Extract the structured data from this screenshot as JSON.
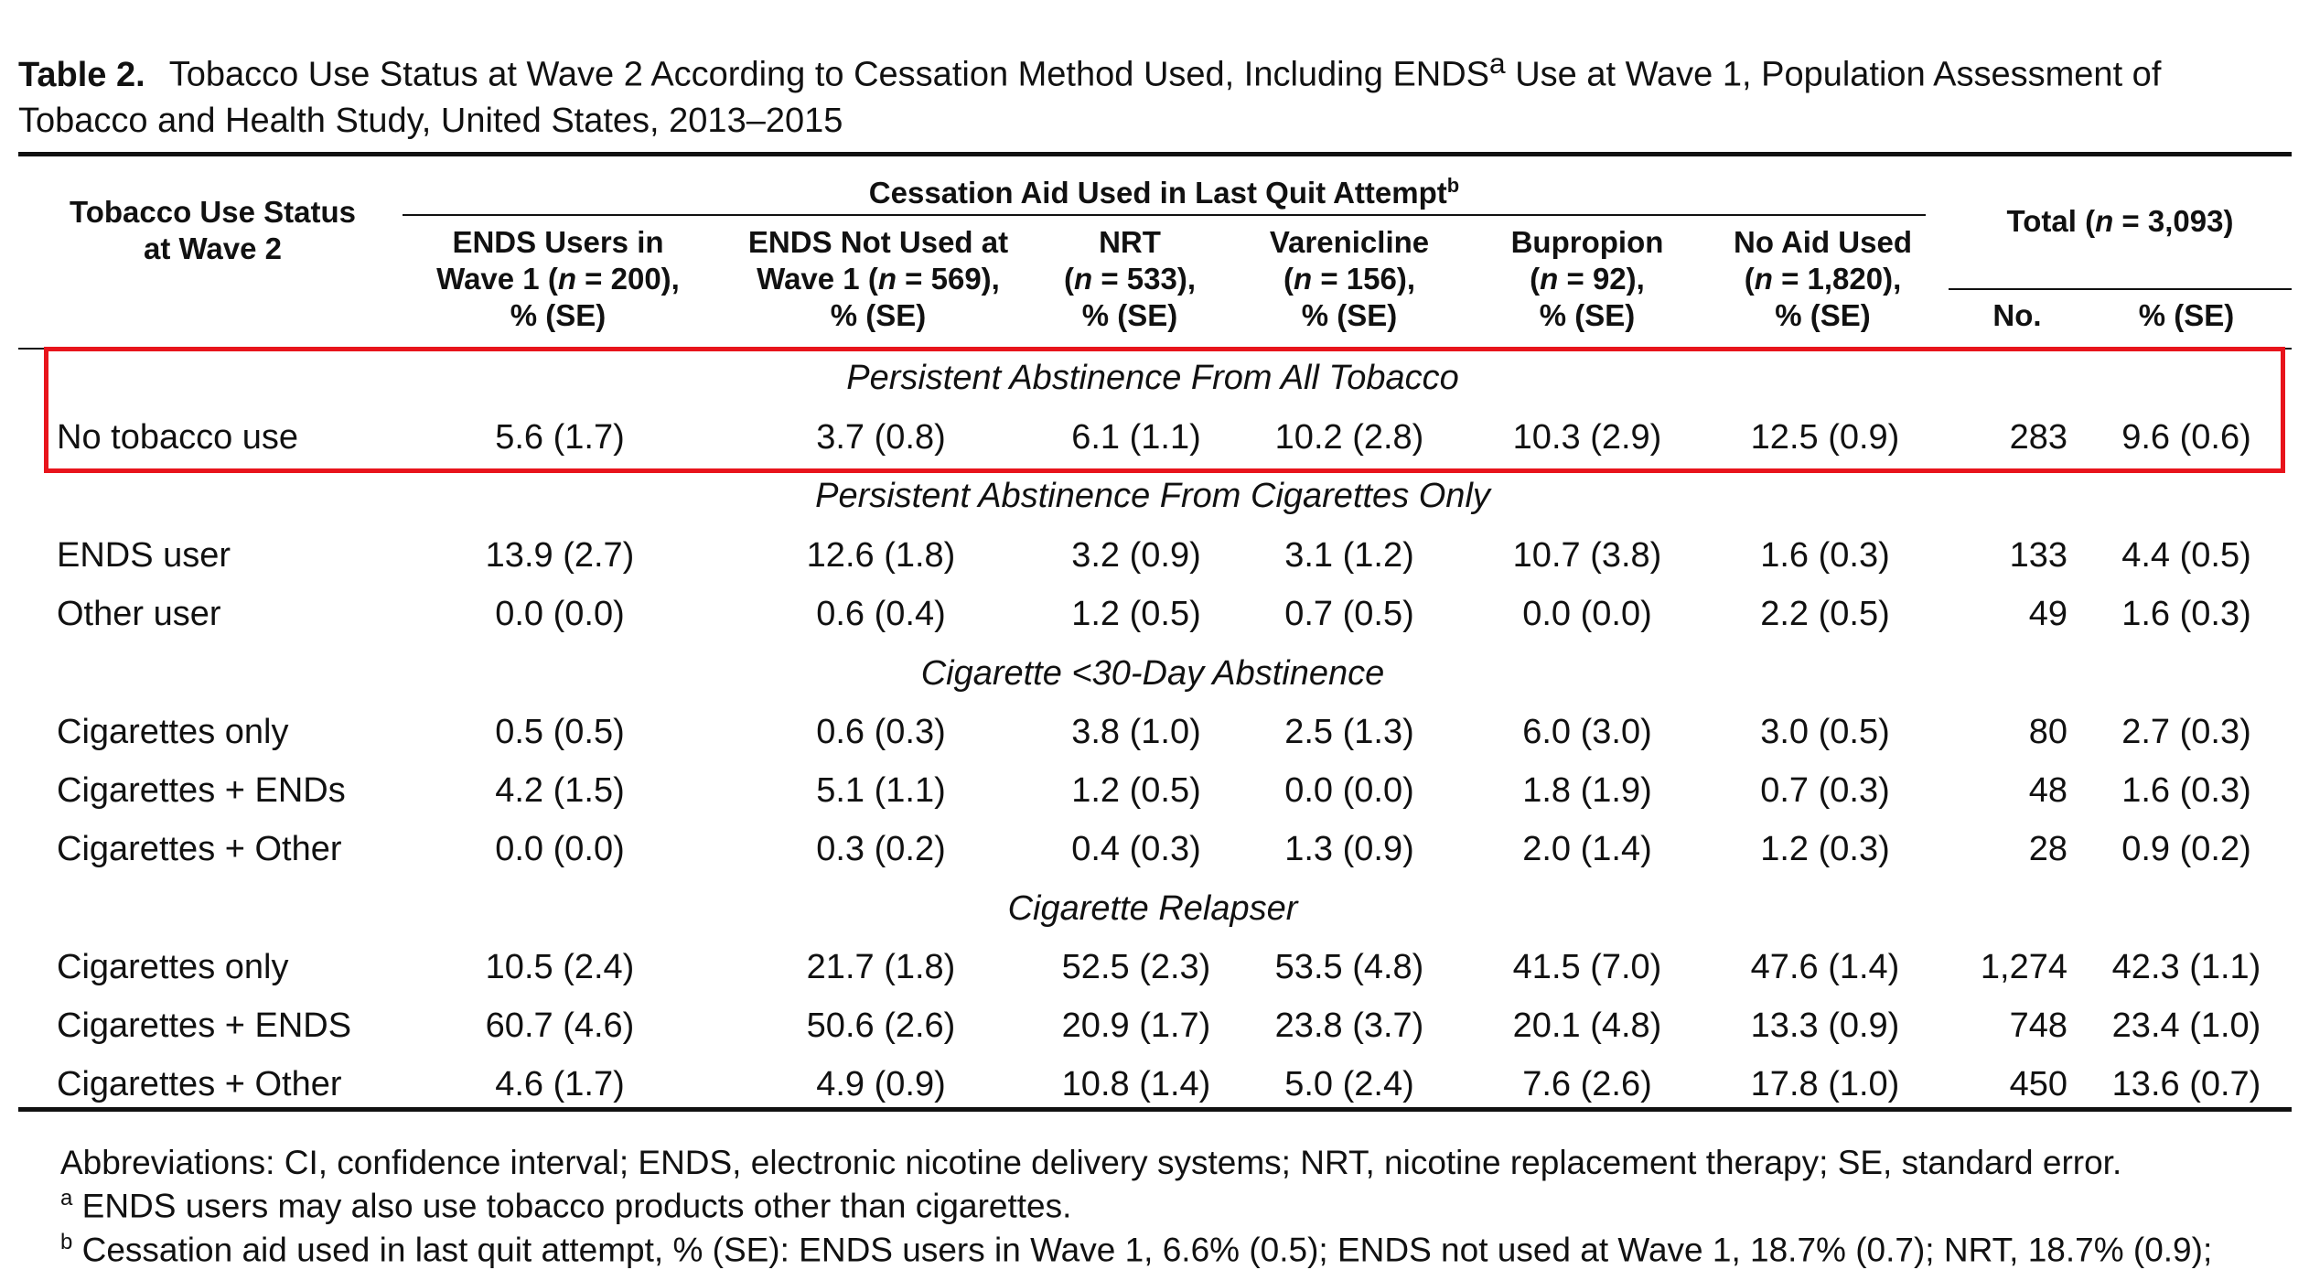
{
  "caption": {
    "label": "Table 2.",
    "text_before": "Tobacco Use Status at Wave 2 According to Cessation Method Used, Including ENDS",
    "sup": "a",
    "text_after": " Use at Wave 1, Population Assessment of Tobacco and Health Study, United States, 2013–2015"
  },
  "header": {
    "status_line1": "Tobacco Use Status",
    "status_line2": "at Wave 2",
    "group_title": "Cessation Aid Used in Last Quit Attempt",
    "group_sup": "b",
    "columns": [
      {
        "l1": "ENDS Users in",
        "l2a": "Wave 1 (",
        "n": "n",
        "l2b": " = 200),",
        "l3": "% (SE)"
      },
      {
        "l1": "ENDS Not Used at",
        "l2a": "Wave 1 (",
        "n": "n",
        "l2b": " = 569),",
        "l3": "% (SE)"
      },
      {
        "l1": "NRT",
        "l2a": "(",
        "n": "n",
        "l2b": " = 533),",
        "l3": "% (SE)"
      },
      {
        "l1": "Varenicline",
        "l2a": "(",
        "n": "n",
        "l2b": " = 156),",
        "l3": "% (SE)"
      },
      {
        "l1": "Bupropion",
        "l2a": "(",
        "n": "n",
        "l2b": " = 92),",
        "l3": "% (SE)"
      },
      {
        "l1": "No Aid Used",
        "l2a": "(",
        "n": "n",
        "l2b": " = 1,820),",
        "l3": "% (SE)"
      }
    ],
    "total_a": "Total (",
    "total_n": "n",
    "total_b": " = 3,093)",
    "total_no": "No.",
    "total_pct": "% (SE)"
  },
  "sections": [
    {
      "title": "Persistent Abstinence From All Tobacco",
      "rows": [
        {
          "label": "No tobacco use",
          "values": [
            "5.6 (1.7)",
            "3.7 (0.8)",
            "6.1 (1.1)",
            "10.2 (2.8)",
            "10.3 (2.9)",
            "12.5 (0.9)"
          ],
          "no": "283",
          "pct": "9.6 (0.6)"
        }
      ]
    },
    {
      "title": "Persistent Abstinence From Cigarettes Only",
      "rows": [
        {
          "label": "ENDS user",
          "values": [
            "13.9 (2.7)",
            "12.6 (1.8)",
            "3.2 (0.9)",
            "3.1 (1.2)",
            "10.7 (3.8)",
            "1.6 (0.3)"
          ],
          "no": "133",
          "pct": "4.4 (0.5)"
        },
        {
          "label": "Other user",
          "values": [
            "0.0 (0.0)",
            "0.6 (0.4)",
            "1.2 (0.5)",
            "0.7 (0.5)",
            "0.0 (0.0)",
            "2.2 (0.5)"
          ],
          "no": "49",
          "pct": "1.6 (0.3)"
        }
      ]
    },
    {
      "title": "Cigarette <30-Day Abstinence",
      "rows": [
        {
          "label": "Cigarettes only",
          "values": [
            "0.5 (0.5)",
            "0.6 (0.3)",
            "3.8 (1.0)",
            "2.5 (1.3)",
            "6.0 (3.0)",
            "3.0 (0.5)"
          ],
          "no": "80",
          "pct": "2.7 (0.3)"
        },
        {
          "label": "Cigarettes + ENDs",
          "values": [
            "4.2 (1.5)",
            "5.1 (1.1)",
            "1.2 (0.5)",
            "0.0 (0.0)",
            "1.8 (1.9)",
            "0.7 (0.3)"
          ],
          "no": "48",
          "pct": "1.6 (0.3)"
        },
        {
          "label": "Cigarettes + Other",
          "values": [
            "0.0 (0.0)",
            "0.3 (0.2)",
            "0.4 (0.3)",
            "1.3 (0.9)",
            "2.0 (1.4)",
            "1.2 (0.3)"
          ],
          "no": "28",
          "pct": "0.9 (0.2)"
        }
      ]
    },
    {
      "title": "Cigarette Relapser",
      "rows": [
        {
          "label": "Cigarettes only",
          "values": [
            "10.5 (2.4)",
            "21.7 (1.8)",
            "52.5 (2.3)",
            "53.5 (4.8)",
            "41.5 (7.0)",
            "47.6 (1.4)"
          ],
          "no": "1,274",
          "pct": "42.3 (1.1)"
        },
        {
          "label": "Cigarettes + ENDS",
          "values": [
            "60.7 (4.6)",
            "50.6 (2.6)",
            "20.9 (1.7)",
            "23.8 (3.7)",
            "20.1 (4.8)",
            "13.3 (0.9)"
          ],
          "no": "748",
          "pct": "23.4 (1.0)"
        },
        {
          "label": "Cigarettes + Other",
          "values": [
            "4.6 (1.7)",
            "4.9 (0.9)",
            "10.8 (1.4)",
            "5.0 (2.4)",
            "7.6 (2.6)",
            "17.8 (1.0)"
          ],
          "no": "450",
          "pct": "13.6 (0.7)"
        }
      ]
    }
  ],
  "footnotes": {
    "abbrev": "Abbreviations: CI, confidence interval; ENDS, electronic nicotine delivery systems; NRT, nicotine replacement therapy; SE, standard error.",
    "a_mark": "a",
    "a_text": " ENDS users may also use tobacco products other than cigarettes.",
    "b_mark": "b",
    "b_text": " Cessation aid used in last quit attempt, % (SE): ENDS users in Wave 1, 6.6% (0.5); ENDS not used at Wave 1, 18.7% (0.7); NRT, 18.7% (0.9);"
  },
  "colors": {
    "highlight": "#e8141c",
    "text": "#111111"
  }
}
